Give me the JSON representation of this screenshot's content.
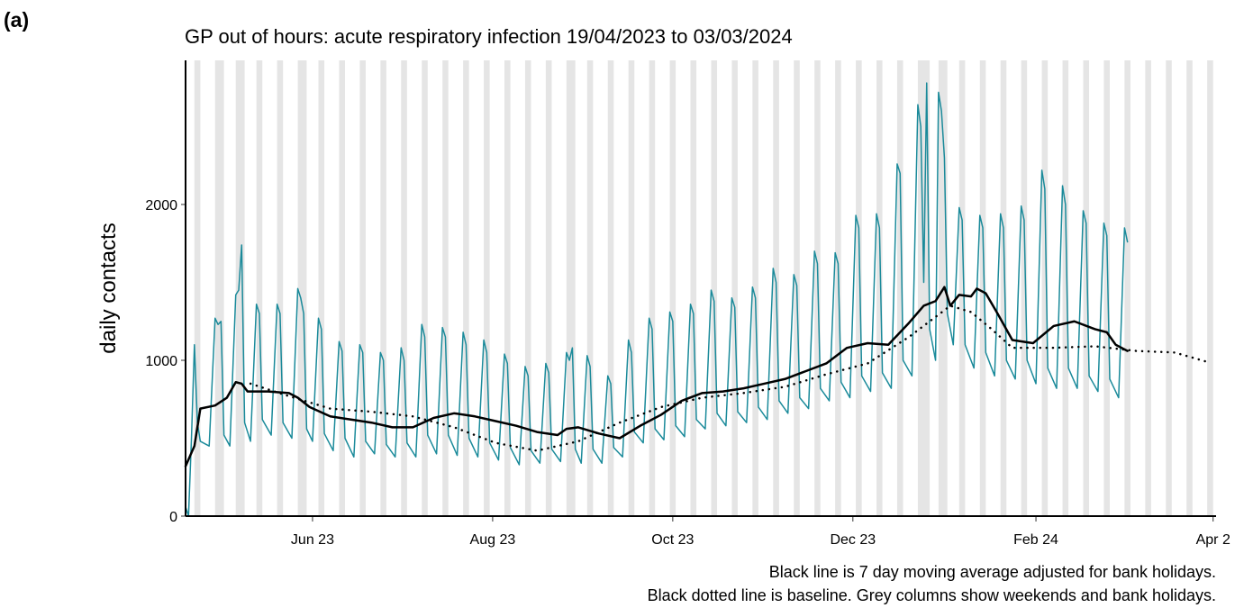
{
  "panel_label": "(a)",
  "chart_data": {
    "type": "line",
    "title": "GP out of hours: acute respiratory infection 19/04/2023 to 03/03/2024",
    "y_label": "daily contacts",
    "notes": [
      "Black line is 7 day moving average adjusted for bank holidays.",
      "Black dotted line is baseline. Grey columns show weekends and bank holidays."
    ],
    "xlim": [
      0,
      349
    ],
    "ylim": [
      0,
      2925
    ],
    "xticks": [
      {
        "value": 43,
        "label": "Jun 23"
      },
      {
        "value": 104,
        "label": "Aug 23"
      },
      {
        "value": 165,
        "label": "Oct 23"
      },
      {
        "value": 226,
        "label": "Dec 23"
      },
      {
        "value": 288,
        "label": "Feb 24"
      },
      {
        "value": 348,
        "label": "Apr 2"
      }
    ],
    "yticks": [
      0,
      1000,
      2000
    ],
    "shade_color": "#e5e5e5",
    "shaded_columns": [
      [
        3,
        5
      ],
      [
        10,
        13
      ],
      [
        17,
        20
      ],
      [
        24,
        26
      ],
      [
        31,
        33
      ],
      [
        38,
        41
      ],
      [
        45,
        47
      ],
      [
        52,
        54
      ],
      [
        59,
        61
      ],
      [
        66,
        68
      ],
      [
        73,
        75
      ],
      [
        80,
        82
      ],
      [
        87,
        89
      ],
      [
        94,
        96
      ],
      [
        101,
        103
      ],
      [
        108,
        110
      ],
      [
        115,
        117
      ],
      [
        122,
        124
      ],
      [
        129,
        132
      ],
      [
        136,
        138
      ],
      [
        143,
        145
      ],
      [
        150,
        152
      ],
      [
        157,
        159
      ],
      [
        164,
        166
      ],
      [
        171,
        173
      ],
      [
        178,
        180
      ],
      [
        185,
        187
      ],
      [
        192,
        194
      ],
      [
        199,
        201
      ],
      [
        206,
        208
      ],
      [
        213,
        215
      ],
      [
        220,
        222
      ],
      [
        227,
        229
      ],
      [
        234,
        236
      ],
      [
        241,
        243
      ],
      [
        248,
        252
      ],
      [
        255,
        258
      ],
      [
        262,
        264
      ],
      [
        269,
        271
      ],
      [
        276,
        278
      ],
      [
        283,
        285
      ],
      [
        290,
        292
      ],
      [
        297,
        299
      ],
      [
        304,
        306
      ],
      [
        311,
        313
      ],
      [
        318,
        320
      ],
      [
        325,
        327
      ],
      [
        332,
        334
      ],
      [
        339,
        341
      ],
      [
        346,
        348
      ]
    ],
    "series": [
      {
        "color": "#1a8a9a",
        "width": 1.5,
        "style": "solid",
        "x": [
          0,
          1,
          2,
          3,
          4,
          5,
          8,
          10,
          11,
          12,
          13,
          15,
          17,
          18,
          19,
          20,
          22,
          24,
          25,
          26,
          29,
          31,
          32,
          33,
          36,
          38,
          39,
          40,
          41,
          43,
          45,
          46,
          47,
          50,
          52,
          53,
          54,
          57,
          59,
          60,
          61,
          64,
          66,
          67,
          68,
          71,
          73,
          74,
          75,
          78,
          80,
          81,
          82,
          85,
          87,
          88,
          89,
          92,
          94,
          95,
          96,
          99,
          101,
          102,
          103,
          106,
          108,
          109,
          110,
          113,
          115,
          116,
          117,
          120,
          122,
          123,
          124,
          127,
          129,
          130,
          131,
          132,
          134,
          136,
          137,
          138,
          141,
          143,
          144,
          145,
          148,
          150,
          151,
          152,
          155,
          157,
          158,
          159,
          162,
          164,
          165,
          166,
          169,
          171,
          172,
          173,
          176,
          178,
          179,
          180,
          183,
          185,
          186,
          187,
          190,
          192,
          193,
          194,
          197,
          199,
          200,
          201,
          204,
          206,
          207,
          208,
          211,
          213,
          214,
          215,
          218,
          220,
          221,
          222,
          225,
          227,
          228,
          229,
          232,
          234,
          235,
          236,
          239,
          241,
          242,
          243,
          246,
          248,
          249,
          250,
          251,
          252,
          254,
          255,
          256,
          257,
          258,
          260,
          262,
          263,
          264,
          267,
          269,
          270,
          271,
          274,
          276,
          277,
          278,
          281,
          283,
          284,
          285,
          288,
          290,
          291,
          292,
          295,
          297,
          298,
          299,
          302,
          304,
          305,
          306,
          309,
          311,
          312,
          313,
          316,
          318,
          319
        ],
        "values": [
          60,
          0,
          500,
          1100,
          600,
          480,
          450,
          1270,
          1230,
          1250,
          520,
          450,
          1420,
          1450,
          1740,
          600,
          480,
          1360,
          1300,
          620,
          520,
          1360,
          1300,
          600,
          500,
          1460,
          1400,
          1300,
          560,
          480,
          1270,
          1200,
          530,
          420,
          1120,
          1060,
          500,
          380,
          1100,
          1050,
          480,
          400,
          1050,
          1000,
          460,
          380,
          1080,
          1000,
          470,
          380,
          1230,
          1150,
          520,
          400,
          1210,
          1150,
          520,
          390,
          1180,
          1100,
          500,
          380,
          1130,
          1050,
          470,
          360,
          1040,
          980,
          440,
          330,
          960,
          900,
          420,
          340,
          980,
          920,
          430,
          350,
          1050,
          1000,
          1080,
          430,
          340,
          1030,
          960,
          430,
          340,
          900,
          850,
          440,
          380,
          1130,
          1050,
          540,
          470,
          1270,
          1200,
          560,
          490,
          1310,
          1250,
          580,
          510,
          1360,
          1300,
          620,
          560,
          1450,
          1380,
          660,
          580,
          1400,
          1340,
          670,
          600,
          1470,
          1400,
          700,
          620,
          1590,
          1500,
          740,
          660,
          1550,
          1480,
          760,
          690,
          1700,
          1620,
          820,
          740,
          1690,
          1620,
          860,
          760,
          1930,
          1850,
          900,
          800,
          1940,
          1850,
          920,
          820,
          2260,
          2200,
          1000,
          900,
          2640,
          2500,
          1500,
          2780,
          1200,
          1000,
          2720,
          2600,
          2300,
          1300,
          1100,
          1980,
          1900,
          1100,
          950,
          1930,
          1850,
          1050,
          900,
          1940,
          1850,
          1000,
          880,
          1990,
          1900,
          1000,
          850,
          2220,
          2100,
          950,
          820,
          2120,
          2000,
          950,
          820,
          1960,
          1880,
          900,
          800,
          1880,
          1800,
          880,
          760,
          1850,
          1760
        ]
      },
      {
        "color": "#000000",
        "width": 2.5,
        "style": "solid",
        "x": [
          0,
          3,
          5,
          10,
          14,
          17,
          19,
          21,
          28,
          35,
          38,
          42,
          49,
          56,
          63,
          70,
          77,
          84,
          91,
          98,
          105,
          112,
          119,
          126,
          129,
          133,
          140,
          147,
          154,
          161,
          168,
          175,
          182,
          189,
          196,
          203,
          210,
          217,
          224,
          231,
          238,
          245,
          250,
          254,
          257,
          259,
          262,
          266,
          268,
          271,
          275,
          280,
          287,
          294,
          301,
          308,
          312,
          315,
          319
        ],
        "values": [
          320,
          450,
          690,
          710,
          760,
          860,
          850,
          800,
          800,
          790,
          760,
          700,
          640,
          620,
          600,
          570,
          570,
          630,
          660,
          640,
          610,
          580,
          540,
          520,
          560,
          570,
          530,
          500,
          580,
          650,
          740,
          790,
          800,
          820,
          850,
          880,
          930,
          980,
          1080,
          1110,
          1100,
          1240,
          1350,
          1380,
          1470,
          1350,
          1420,
          1410,
          1460,
          1430,
          1300,
          1130,
          1110,
          1220,
          1250,
          1200,
          1180,
          1100,
          1060
        ]
      },
      {
        "color": "#000000",
        "width": 2.5,
        "style": "dotted",
        "x": [
          22,
          35,
          49,
          63,
          77,
          91,
          105,
          119,
          133,
          147,
          161,
          175,
          189,
          203,
          217,
          231,
          245,
          259,
          266,
          273,
          280,
          294,
          308,
          322,
          335,
          346
        ],
        "values": [
          850,
          770,
          690,
          670,
          640,
          570,
          470,
          420,
          480,
          600,
          700,
          760,
          790,
          830,
          910,
          980,
          1150,
          1350,
          1310,
          1200,
          1080,
          1080,
          1090,
          1060,
          1050,
          990
        ]
      }
    ]
  }
}
